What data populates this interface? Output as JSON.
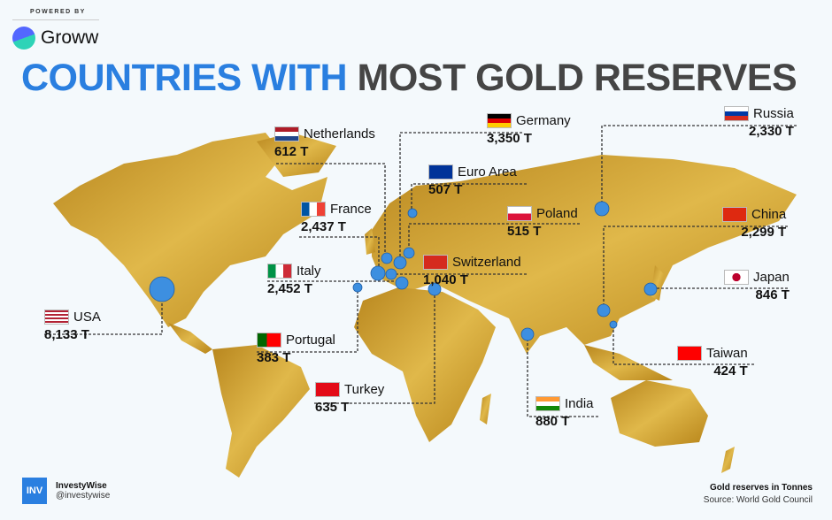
{
  "header": {
    "powered_by": "POWERED BY",
    "brand": "Groww",
    "title_part1": "COUNTRIES WITH",
    "title_part2": "MOST GOLD RESERVES"
  },
  "colors": {
    "accent": "#2a7fe0",
    "land": "#c99a2a",
    "dot": "#3d8fe0"
  },
  "countries": [
    {
      "name": "USA",
      "value": "8,133 T",
      "flag": "us"
    },
    {
      "name": "Germany",
      "value": "3,350 T",
      "flag": "de"
    },
    {
      "name": "Italy",
      "value": "2,452 T",
      "flag": "it"
    },
    {
      "name": "France",
      "value": "2,437 T",
      "flag": "fr"
    },
    {
      "name": "Russia",
      "value": "2,330 T",
      "flag": "ru"
    },
    {
      "name": "China",
      "value": "2,299 T",
      "flag": "cn"
    },
    {
      "name": "Switzerland",
      "value": "1,040 T",
      "flag": "ch"
    },
    {
      "name": "India",
      "value": "880 T",
      "flag": "in"
    },
    {
      "name": "Japan",
      "value": "846 T",
      "flag": "jp"
    },
    {
      "name": "Turkey",
      "value": "635 T",
      "flag": "tr"
    },
    {
      "name": "Netherlands",
      "value": "612 T",
      "flag": "nl"
    },
    {
      "name": "Poland",
      "value": "515 T",
      "flag": "pl"
    },
    {
      "name": "Euro Area",
      "value": "507 T",
      "flag": "eu"
    },
    {
      "name": "Taiwan",
      "value": "424 T",
      "flag": "tw"
    },
    {
      "name": "Portugal",
      "value": "383 T",
      "flag": "pt"
    }
  ],
  "footer": {
    "brand_logo": "INV",
    "brand_name": "InvestyWise",
    "handle": "@investywise",
    "legend": "Gold reserves in Tonnes",
    "source": "Source: World Gold Council"
  }
}
